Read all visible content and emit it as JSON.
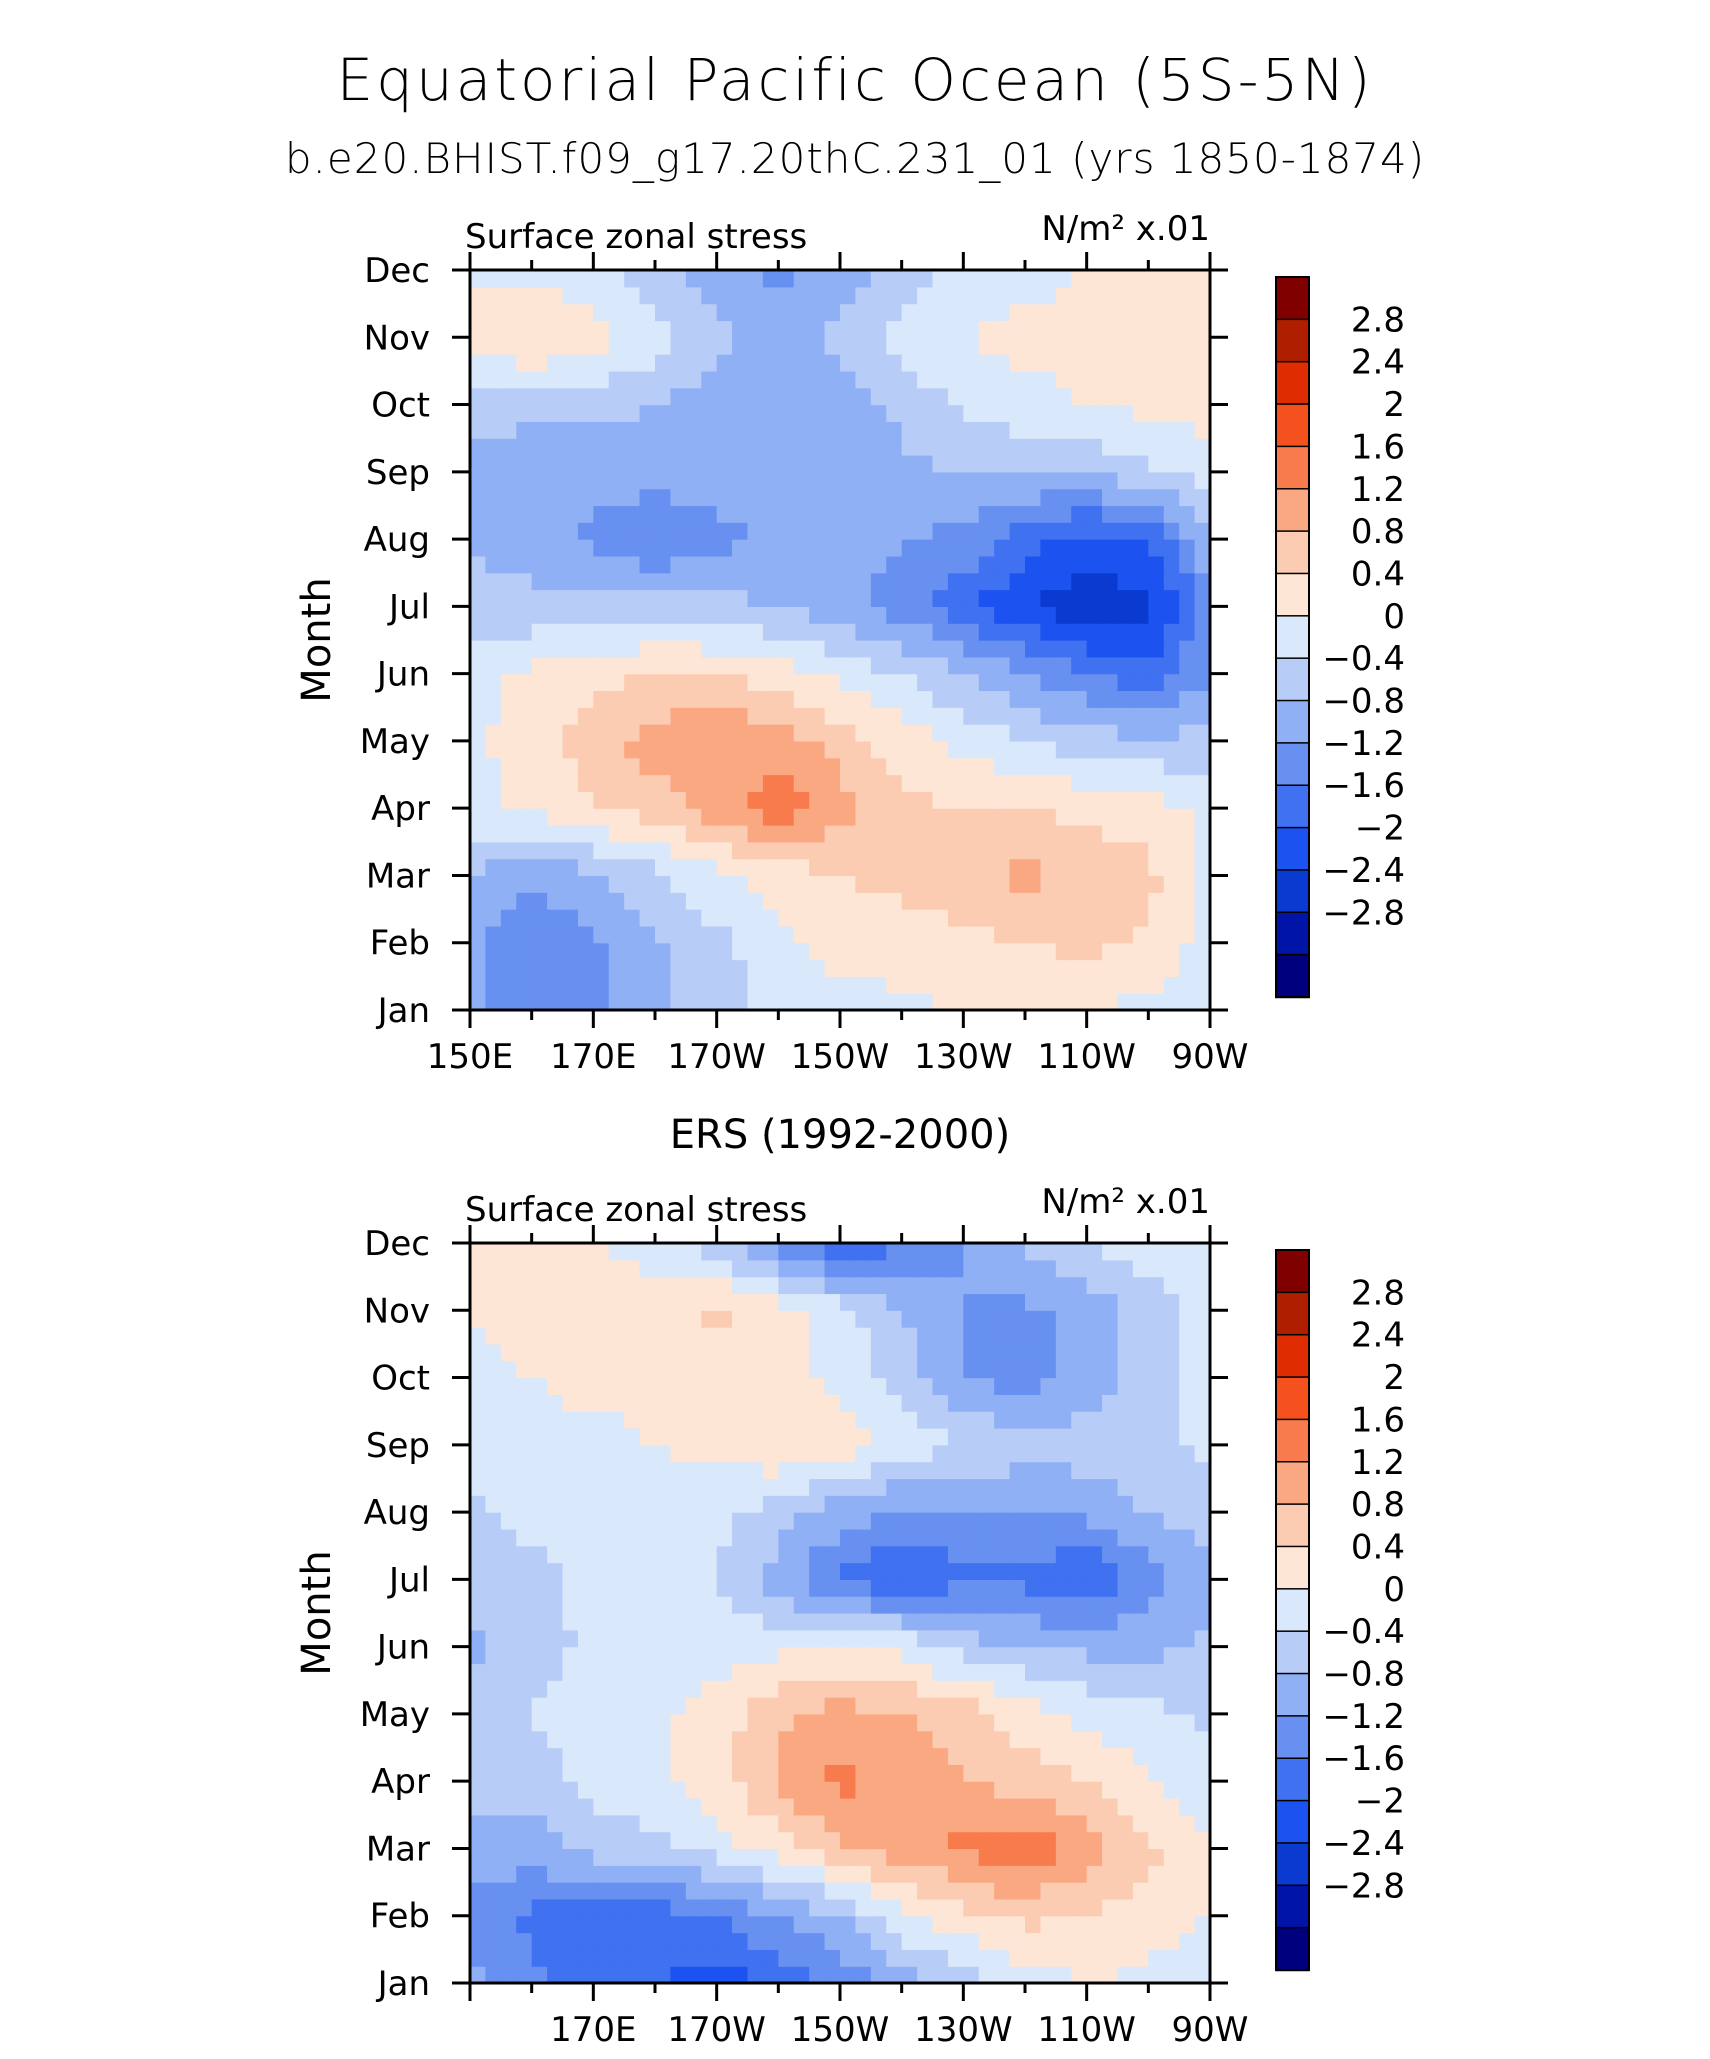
{
  "figure": {
    "title": "Equatorial Pacific Ocean (5S-5N)"
  },
  "chart_data": [
    {
      "type": "heatmap",
      "title": "b.e20.BHIST.f09_g17.20thC.231_01 (yrs 1850-1874)",
      "left_label": "Surface zonal stress",
      "units": "N/m² x.01",
      "xlabel": "",
      "ylabel": "Month",
      "x_ticks": [
        "150E",
        "170E",
        "170W",
        "150W",
        "130W",
        "110W",
        "90W"
      ],
      "y_ticks": [
        "Jan",
        "Feb",
        "Mar",
        "Apr",
        "May",
        "Jun",
        "Jul",
        "Aug",
        "Sep",
        "Oct",
        "Nov",
        "Dec"
      ],
      "xlim": [
        150,
        270
      ],
      "x": [
        150,
        160,
        170,
        180,
        190,
        200,
        210,
        220,
        230,
        240,
        250,
        260,
        270
      ],
      "y": [
        "Jan",
        "Feb",
        "Mar",
        "Apr",
        "May",
        "Jun",
        "Jul",
        "Aug",
        "Sep",
        "Oct",
        "Nov",
        "Dec"
      ],
      "z": [
        [
          -0.6,
          -1.2,
          -0.9,
          -0.5,
          -0.2,
          0.1,
          0.3,
          0.3,
          0.4,
          0.4,
          0.4,
          0.3,
          0.1
        ],
        [
          -0.7,
          -1.2,
          -0.9,
          -0.5,
          -0.1,
          0.3,
          0.5,
          0.6,
          0.7,
          0.8,
          0.9,
          0.7,
          0.2
        ],
        [
          -0.4,
          -0.7,
          -0.5,
          -0.1,
          0.3,
          0.6,
          0.8,
          0.9,
          1.0,
          1.3,
          1.1,
          0.9,
          0.3
        ],
        [
          0.3,
          0.5,
          0.8,
          1.0,
          1.4,
          1.8,
          1.4,
          0.9,
          0.8,
          0.8,
          0.7,
          0.6,
          0.3
        ],
        [
          0.3,
          0.6,
          1.0,
          1.4,
          1.6,
          1.4,
          1.0,
          0.6,
          0.3,
          0.0,
          -0.2,
          -0.3,
          -0.3
        ],
        [
          0.3,
          0.5,
          0.7,
          0.8,
          0.8,
          0.6,
          0.3,
          0.0,
          -0.4,
          -0.8,
          -1.2,
          -1.5,
          -0.8
        ],
        [
          -0.2,
          -0.3,
          -0.3,
          -0.2,
          -0.3,
          -0.4,
          -0.7,
          -1.0,
          -1.5,
          -2.0,
          -2.3,
          -2.1,
          -1.0
        ],
        [
          -0.5,
          -0.6,
          -0.9,
          -1.2,
          -0.9,
          -0.7,
          -0.6,
          -0.8,
          -0.9,
          -1.4,
          -1.8,
          -1.6,
          -0.4
        ],
        [
          -0.5,
          -0.6,
          -0.6,
          -0.6,
          -0.6,
          -0.7,
          -0.6,
          -0.5,
          -0.4,
          -0.4,
          -0.3,
          -0.1,
          0.2
        ],
        [
          -0.3,
          -0.3,
          -0.3,
          -0.4,
          -0.6,
          -0.7,
          -0.6,
          -0.3,
          0.1,
          0.3,
          0.4,
          0.5,
          0.6
        ],
        [
          0.6,
          0.9,
          0.6,
          0.2,
          -0.3,
          -0.6,
          -0.3,
          0.2,
          0.4,
          0.5,
          0.5,
          0.5,
          0.5
        ],
        [
          0.3,
          0.3,
          0.1,
          -0.2,
          -0.6,
          -0.9,
          -0.6,
          -0.2,
          0.1,
          0.3,
          0.4,
          0.4,
          0.4
        ]
      ],
      "colorbar_labels": [
        "2.8",
        "2.4",
        "2",
        "1.6",
        "1.2",
        "0.8",
        "0.4",
        "0",
        "−0.4",
        "−0.8",
        "−1.2",
        "−1.6",
        "−2",
        "−2.4",
        "−2.8"
      ]
    },
    {
      "type": "heatmap",
      "title": "ERS (1992-2000)",
      "left_label": "Surface zonal stress",
      "units": "N/m² x.01",
      "xlabel": "",
      "ylabel": "Month",
      "x_ticks": [
        "170E",
        "170W",
        "150W",
        "130W",
        "110W",
        "90W"
      ],
      "y_ticks": [
        "Jan",
        "Feb",
        "Mar",
        "Apr",
        "May",
        "Jun",
        "Jul",
        "Aug",
        "Sep",
        "Oct",
        "Nov",
        "Dec"
      ],
      "xlim": [
        150,
        270
      ],
      "x": [
        150,
        160,
        170,
        180,
        190,
        200,
        210,
        220,
        230,
        240,
        250,
        260,
        270
      ],
      "y": [
        "Jan",
        "Feb",
        "Mar",
        "Apr",
        "May",
        "Jun",
        "Jul",
        "Aug",
        "Sep",
        "Oct",
        "Nov",
        "Dec"
      ],
      "z": [
        [
          -0.6,
          -1.1,
          -1.4,
          -1.6,
          -1.8,
          -1.5,
          -1.1,
          -0.6,
          -0.2,
          0.2,
          0.4,
          0.3,
          0.2
        ],
        [
          -1.0,
          -1.3,
          -1.5,
          -1.4,
          -1.2,
          -0.8,
          -0.4,
          0.3,
          0.7,
          0.9,
          0.8,
          0.6,
          0.4
        ],
        [
          -0.5,
          -0.6,
          -0.2,
          -0.1,
          0.2,
          0.6,
          1.1,
          1.4,
          1.7,
          1.9,
          1.4,
          0.9,
          0.4
        ],
        [
          -0.3,
          -0.2,
          0.1,
          0.3,
          0.6,
          1.3,
          1.7,
          1.5,
          1.2,
          1.0,
          0.8,
          0.4,
          0.1
        ],
        [
          -0.2,
          0.0,
          0.2,
          0.3,
          0.6,
          1.1,
          1.4,
          1.2,
          1.0,
          0.6,
          0.3,
          0.1,
          -0.1
        ],
        [
          -0.5,
          -0.2,
          0.1,
          0.2,
          0.2,
          0.3,
          0.3,
          0.3,
          -0.2,
          -0.4,
          -0.5,
          -0.5,
          -0.3
        ],
        [
          -0.2,
          -0.1,
          0.1,
          0.2,
          0.0,
          -0.6,
          -1.3,
          -1.6,
          -1.3,
          -1.3,
          -1.6,
          -1.0,
          -0.5
        ],
        [
          -0.1,
          0.1,
          0.2,
          0.3,
          0.1,
          -0.2,
          -0.6,
          -0.9,
          -0.9,
          -0.8,
          -0.7,
          -0.4,
          -0.2
        ],
        [
          0.1,
          0.3,
          0.3,
          0.4,
          0.5,
          0.8,
          0.6,
          0.3,
          0.0,
          -0.2,
          -0.2,
          -0.1,
          0.1
        ],
        [
          0.3,
          0.4,
          0.5,
          0.5,
          0.5,
          0.5,
          0.3,
          -0.2,
          -0.8,
          -1.0,
          -0.6,
          -0.2,
          0.2
        ],
        [
          0.4,
          0.5,
          0.6,
          0.7,
          0.9,
          0.6,
          0.2,
          -0.4,
          -0.8,
          -0.9,
          -0.7,
          -0.2,
          0.2
        ],
        [
          0.5,
          0.6,
          0.4,
          0.2,
          -0.2,
          -1.0,
          -1.6,
          -1.2,
          -0.8,
          -0.3,
          0.0,
          0.2,
          0.3
        ]
      ],
      "colorbar_labels": [
        "2.8",
        "2.4",
        "2",
        "1.6",
        "1.2",
        "0.8",
        "0.4",
        "0",
        "−0.4",
        "−0.8",
        "−1.2",
        "−1.6",
        "−2",
        "−2.4",
        "−2.8"
      ]
    }
  ],
  "colorbar": {
    "levels": [
      -2.8,
      -2.4,
      -2.0,
      -1.6,
      -1.2,
      -0.8,
      -0.4,
      0,
      0.4,
      0.8,
      1.2,
      1.6,
      2.0,
      2.4,
      2.8
    ],
    "colors": [
      "#00007f",
      "#0015a8",
      "#0a3ad0",
      "#1c52f0",
      "#3f71f0",
      "#6790f0",
      "#90b0f5",
      "#b8ccf8",
      "#d9e8fb",
      "#fde6d5",
      "#fbcbb2",
      "#f9a882",
      "#f87b4d",
      "#f4511f",
      "#df2c00",
      "#b01e00",
      "#800000"
    ]
  }
}
